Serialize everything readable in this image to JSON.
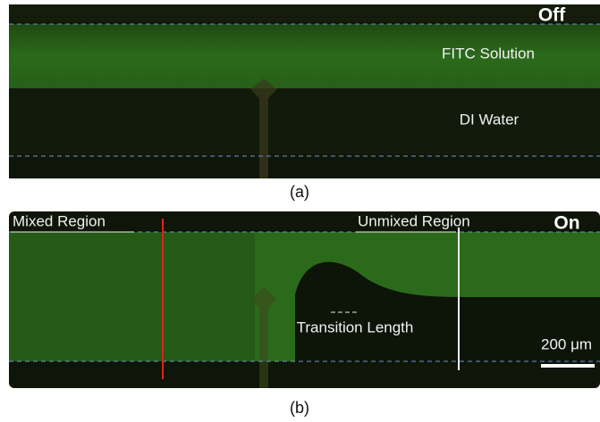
{
  "panels": [
    {
      "caption": "(a)",
      "state": "Off",
      "labels": [
        "FITC Solution",
        "DI Water"
      ]
    },
    {
      "caption": "(b)",
      "state": "On",
      "labels": [
        "Mixed Region",
        "Unmixed Region",
        "Transition Length"
      ],
      "scale_bar": "200 μm"
    }
  ]
}
